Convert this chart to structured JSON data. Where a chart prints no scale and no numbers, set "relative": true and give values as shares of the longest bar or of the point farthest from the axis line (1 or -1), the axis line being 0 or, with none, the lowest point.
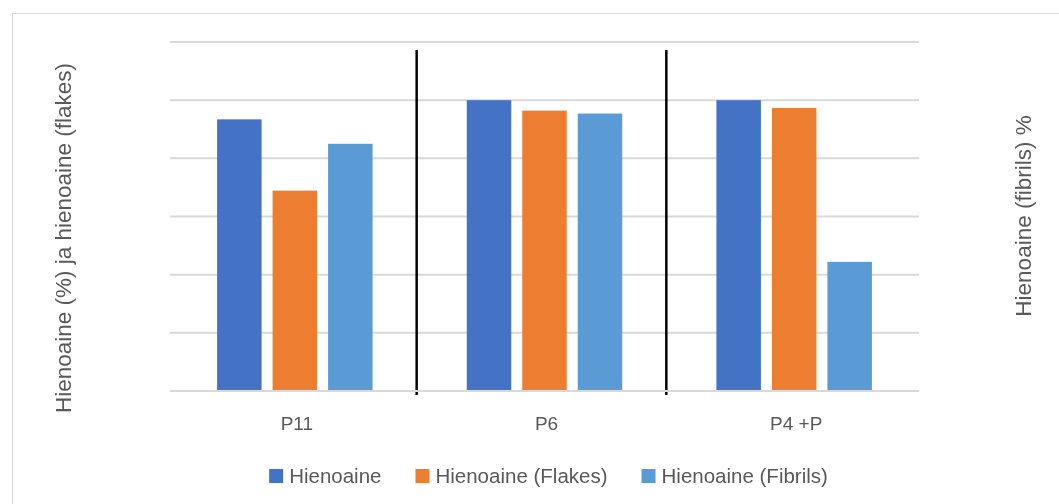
{
  "chart_data": {
    "type": "bar",
    "relative": true,
    "ylabel": "Hienoaine (%) ja hienoaine (flakes)",
    "y2label": "Hienoaine (fibrils) %",
    "categories": [
      "P11",
      "P6",
      "P4 +P"
    ],
    "series": [
      {
        "name": "Hienoaine",
        "color": "#4472c4",
        "values": [
          0.934,
          1,
          1
        ]
      },
      {
        "name": "Hienoaine (Flakes)",
        "color": "#ed7d31",
        "values": [
          0.689,
          0.964,
          0.973
        ]
      },
      {
        "name": "Hienoaine (Fibrils)",
        "color": "#5b9bd5",
        "values": [
          0.85,
          0.954,
          0.444
        ]
      }
    ],
    "grid": true,
    "legend": "bottom"
  }
}
